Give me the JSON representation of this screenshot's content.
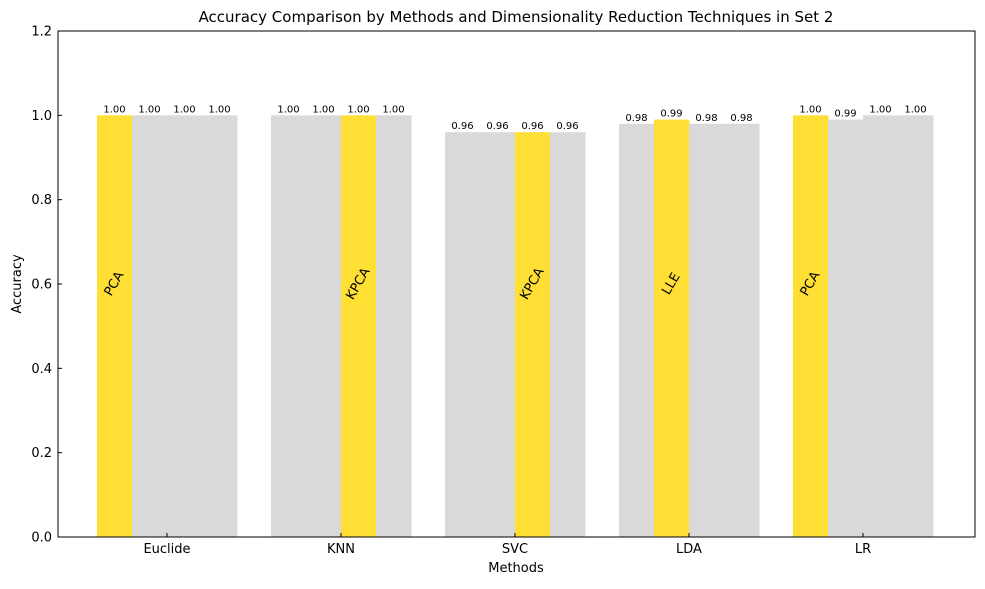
{
  "chart_data": {
    "type": "bar",
    "title": "Accuracy Comparison by Methods and Dimensionality Reduction Techniques in Set 2",
    "xlabel": "Methods",
    "ylabel": "Accuracy",
    "ylim": [
      0,
      1.2
    ],
    "yticks": [
      "0.0",
      "0.2",
      "0.4",
      "0.6",
      "0.8",
      "1.0",
      "1.2"
    ],
    "categories": [
      "Euclide",
      "KNN",
      "SVC",
      "LDA",
      "LR"
    ],
    "values": [
      [
        1.0,
        1.0,
        1.0,
        1.0
      ],
      [
        1.0,
        1.0,
        1.0,
        1.0
      ],
      [
        0.96,
        0.96,
        0.96,
        0.96
      ],
      [
        0.98,
        0.99,
        0.98,
        0.98
      ],
      [
        1.0,
        0.99,
        1.0,
        1.0
      ]
    ],
    "value_labels": [
      [
        "1.00",
        "1.00",
        "1.00",
        "1.00"
      ],
      [
        "1.00",
        "1.00",
        "1.00",
        "1.00"
      ],
      [
        "0.96",
        "0.96",
        "0.96",
        "0.96"
      ],
      [
        "0.98",
        "0.99",
        "0.98",
        "0.98"
      ],
      [
        "1.00",
        "0.99",
        "1.00",
        "1.00"
      ]
    ],
    "best_index": [
      0,
      2,
      2,
      1,
      0
    ],
    "best_labels": [
      "PCA",
      "KPCA",
      "KPCA",
      "LLE",
      "PCA"
    ],
    "colors": {
      "best": "#FFDF33",
      "other": "#D9D9D9"
    },
    "grid": false,
    "legend": "none"
  }
}
